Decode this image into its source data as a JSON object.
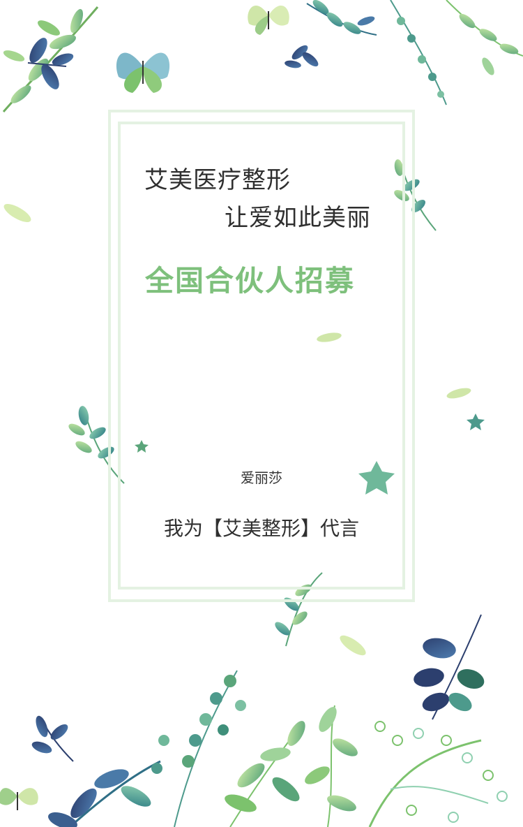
{
  "card": {
    "line1": "艾美医疗整形",
    "line2": "让爱如此美丽",
    "headline": "全国合伙人招募",
    "name": "爱丽莎",
    "slogan": "我为【艾美整形】代言"
  },
  "colors": {
    "accent_green": "#7ec07c",
    "frame": "#e4f2e2",
    "leaf_dark_blue": "#3b5f8f",
    "leaf_teal": "#4d9a8c",
    "leaf_light_green": "#9fd39a"
  },
  "decorations": [
    "butterfly-icon",
    "leaf-branch-icon",
    "star-leaf-icon",
    "falling-leaf-icon"
  ]
}
